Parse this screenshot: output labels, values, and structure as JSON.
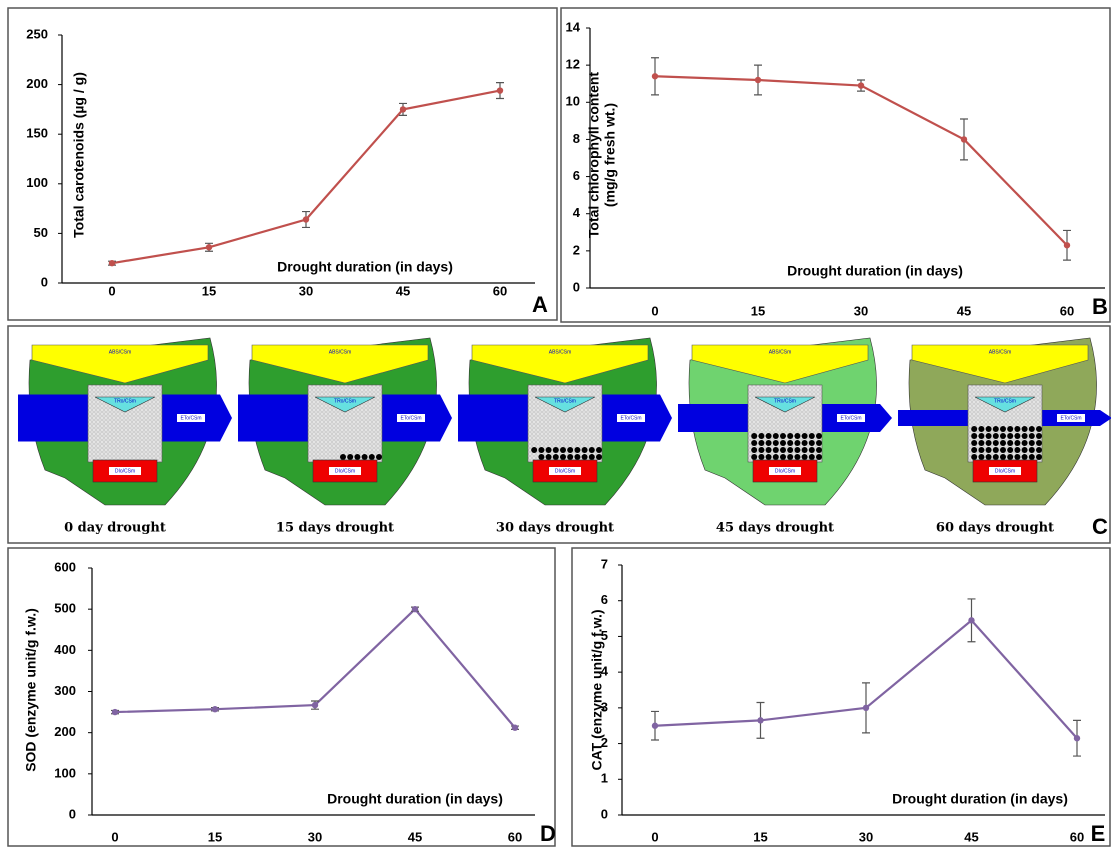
{
  "chart_data": [
    {
      "type": "line",
      "panel_label": "A",
      "ylabel": [
        "Total carotenoids (µg / g)"
      ],
      "xlabel": "Drought duration (in days)",
      "categories": [
        "0",
        "15",
        "30",
        "45",
        "60"
      ],
      "series": [
        {
          "color": "#c0504d",
          "values": [
            20,
            36,
            64,
            175,
            194
          ],
          "errors": [
            2,
            4,
            8,
            6,
            8
          ]
        }
      ],
      "ylim": [
        0,
        250
      ],
      "yticks": [
        0,
        50,
        100,
        150,
        200,
        250
      ]
    },
    {
      "type": "line",
      "panel_label": "B",
      "ylabel": [
        "Total chlorophyll content",
        "(mg/g fresh wt.)"
      ],
      "xlabel": "Drought duration (in days)",
      "categories": [
        "0",
        "15",
        "30",
        "45",
        "60"
      ],
      "series": [
        {
          "color": "#c0504d",
          "values": [
            11.4,
            11.2,
            10.9,
            8.0,
            2.3
          ],
          "errors": [
            1.0,
            0.8,
            0.3,
            1.1,
            0.8
          ]
        }
      ],
      "ylim": [
        0,
        14
      ],
      "yticks": [
        0,
        2,
        4,
        6,
        8,
        10,
        12,
        14
      ]
    },
    {
      "type": "line",
      "panel_label": "D",
      "ylabel": [
        "SOD (enzyme unit/g f.w.)"
      ],
      "xlabel": "Drought duration (in days)",
      "categories": [
        "0",
        "15",
        "30",
        "45",
        "60"
      ],
      "series": [
        {
          "color": "#8064a2",
          "values": [
            250,
            257,
            267,
            500,
            212
          ],
          "errors": [
            4,
            4,
            10,
            5,
            4
          ]
        }
      ],
      "ylim": [
        0,
        600
      ],
      "yticks": [
        0,
        100,
        200,
        300,
        400,
        500,
        600
      ]
    },
    {
      "type": "line",
      "panel_label": "E",
      "ylabel": [
        "CAT (enzyme unit/g f.w.)"
      ],
      "xlabel": "Drought duration (in days)",
      "categories": [
        "0",
        "15",
        "30",
        "45",
        "60"
      ],
      "series": [
        {
          "color": "#8064a2",
          "values": [
            2.5,
            2.65,
            3.0,
            5.45,
            2.15
          ],
          "errors": [
            0.4,
            0.5,
            0.7,
            0.6,
            0.5
          ]
        }
      ],
      "ylim": [
        0,
        7
      ],
      "yticks": [
        0,
        1,
        2,
        3,
        4,
        5,
        6,
        7
      ]
    }
  ],
  "diagram": {
    "panel_label": "C",
    "models": [
      {
        "caption": "0 day drought",
        "abs": "ABS/CSm",
        "tro": "TRo/CSm",
        "eto": "ETo/CSm",
        "dio": "DIo/CSm"
      },
      {
        "caption": "15 days drought",
        "abs": "ABS/CSm",
        "tro": "TRo/CSm",
        "eto": "ETo/CSm",
        "dio": "DIo/CSm"
      },
      {
        "caption": "30 days drought",
        "abs": "ABS/CSm",
        "tro": "TRo/CSm",
        "eto": "ETo/CSm",
        "dio": "DIo/CSm"
      },
      {
        "caption": "45 days drought",
        "abs": "ABS/CSm",
        "tro": "TRo/CSm",
        "eto": "ETo/CSm",
        "dio": "DIo/CSm"
      },
      {
        "caption": "60 days drought",
        "abs": "ABS/CSm",
        "tro": "TRo/CSm",
        "eto": "ETo/CSm",
        "dio": "DIo/CSm"
      }
    ]
  }
}
